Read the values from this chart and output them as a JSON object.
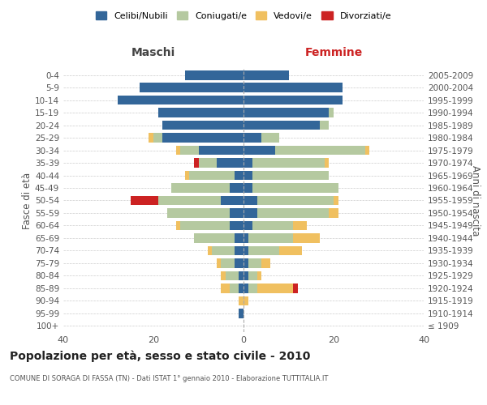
{
  "age_groups": [
    "100+",
    "95-99",
    "90-94",
    "85-89",
    "80-84",
    "75-79",
    "70-74",
    "65-69",
    "60-64",
    "55-59",
    "50-54",
    "45-49",
    "40-44",
    "35-39",
    "30-34",
    "25-29",
    "20-24",
    "15-19",
    "10-14",
    "5-9",
    "0-4"
  ],
  "birth_years": [
    "≤ 1909",
    "1910-1914",
    "1915-1919",
    "1920-1924",
    "1925-1929",
    "1930-1934",
    "1935-1939",
    "1940-1944",
    "1945-1949",
    "1950-1954",
    "1955-1959",
    "1960-1964",
    "1965-1969",
    "1970-1974",
    "1975-1979",
    "1980-1984",
    "1985-1989",
    "1990-1994",
    "1995-1999",
    "2000-2004",
    "2005-2009"
  ],
  "maschi": {
    "celibi": [
      0,
      1,
      0,
      1,
      1,
      2,
      2,
      2,
      3,
      3,
      5,
      3,
      2,
      6,
      10,
      18,
      18,
      19,
      28,
      23,
      13
    ],
    "coniugati": [
      0,
      0,
      0,
      2,
      3,
      3,
      5,
      9,
      11,
      14,
      14,
      13,
      10,
      4,
      4,
      2,
      0,
      0,
      0,
      0,
      0
    ],
    "vedovi": [
      0,
      0,
      1,
      2,
      1,
      1,
      1,
      0,
      1,
      0,
      0,
      0,
      1,
      0,
      1,
      1,
      0,
      0,
      0,
      0,
      0
    ],
    "divorziati": [
      0,
      0,
      0,
      0,
      0,
      0,
      0,
      0,
      0,
      0,
      6,
      0,
      0,
      1,
      0,
      0,
      0,
      0,
      0,
      0,
      0
    ]
  },
  "femmine": {
    "nubili": [
      0,
      0,
      0,
      1,
      1,
      1,
      1,
      1,
      2,
      3,
      3,
      2,
      2,
      2,
      7,
      4,
      17,
      19,
      22,
      22,
      10
    ],
    "coniugate": [
      0,
      0,
      0,
      2,
      2,
      3,
      7,
      10,
      9,
      16,
      17,
      19,
      17,
      16,
      20,
      4,
      2,
      1,
      0,
      0,
      0
    ],
    "vedove": [
      0,
      0,
      1,
      8,
      1,
      2,
      5,
      6,
      3,
      2,
      1,
      0,
      0,
      1,
      1,
      0,
      0,
      0,
      0,
      0,
      0
    ],
    "divorziate": [
      0,
      0,
      0,
      1,
      0,
      0,
      0,
      0,
      0,
      0,
      0,
      0,
      0,
      0,
      0,
      0,
      0,
      0,
      0,
      0,
      0
    ]
  },
  "colors": {
    "celibi_nubili": "#336699",
    "coniugati_e": "#b5c9a0",
    "vedovi_e": "#f0c060",
    "divorziati_e": "#cc2222"
  },
  "xlim": 40,
  "title": "Popolazione per età, sesso e stato civile - 2010",
  "subtitle": "COMUNE DI SORAGA DI FASSA (TN) - Dati ISTAT 1° gennaio 2010 - Elaborazione TUTTITALIA.IT",
  "ylabel_left": "Fasce di età",
  "ylabel_right": "Anni di nascita",
  "xlabel_left": "Maschi",
  "xlabel_right": "Femmine",
  "legend_labels": [
    "Celibi/Nubili",
    "Coniugati/e",
    "Vedovi/e",
    "Divorziati/e"
  ],
  "background_color": "#ffffff",
  "grid_color": "#cccccc"
}
